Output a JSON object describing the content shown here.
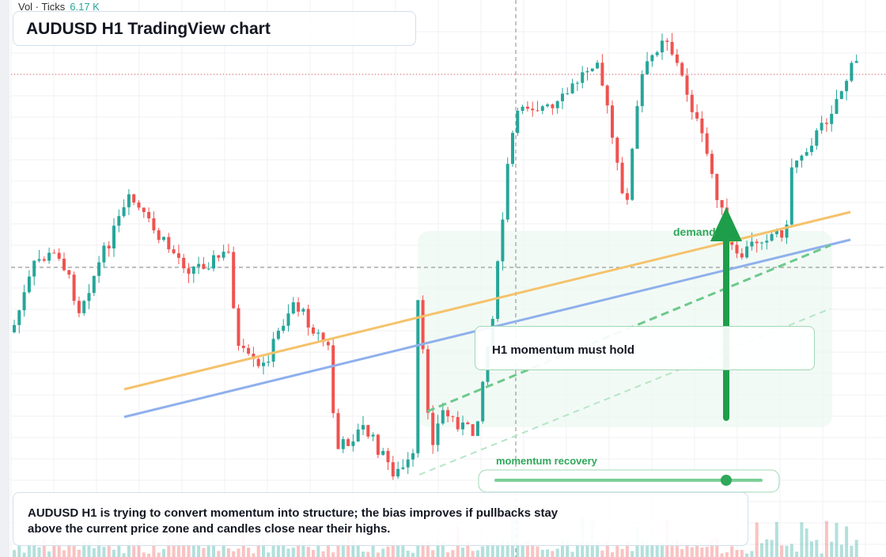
{
  "header": {
    "volume_label": "Vol · Ticks",
    "volume_value": "6.17 K",
    "title": "AUDUSD H1 TradingView chart"
  },
  "annotations": {
    "demand": "demand",
    "callout": "H1 momentum must hold",
    "slider_label": "momentum recovery"
  },
  "note": {
    "line1": "AUDUSD H1 is trying to convert momentum into structure; the bias improves if pullbacks stay",
    "line2": "above the current price zone and candles close near their highs."
  }
}
